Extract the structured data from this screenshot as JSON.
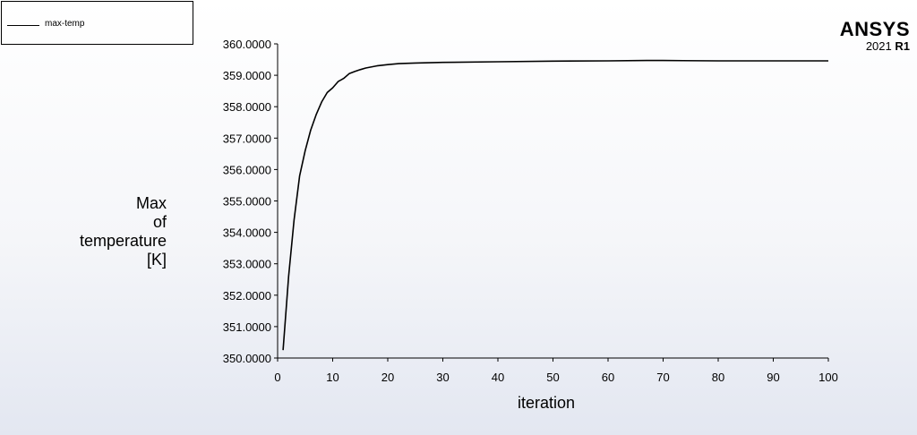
{
  "legend": {
    "label": "max-temp"
  },
  "brand": {
    "name": "ANSYS",
    "version_year": "2021",
    "version_release": "R1"
  },
  "chart_data": {
    "type": "line",
    "title": "",
    "xlabel": "iteration",
    "ylabel_lines": [
      "Max",
      "of",
      "temperature",
      "[K]"
    ],
    "xlim": [
      0,
      100
    ],
    "ylim": [
      350,
      360
    ],
    "x_ticks": [
      0,
      10,
      20,
      30,
      40,
      50,
      60,
      70,
      80,
      90,
      100
    ],
    "y_ticks": [
      350,
      351,
      352,
      353,
      354,
      355,
      356,
      357,
      358,
      359,
      360
    ],
    "y_tick_labels": [
      "350.0000",
      "351.0000",
      "352.0000",
      "353.0000",
      "354.0000",
      "355.0000",
      "356.0000",
      "357.0000",
      "358.0000",
      "359.0000",
      "360.0000"
    ],
    "grid": false,
    "legend_position": "top-left",
    "line_color": "#000000",
    "series": [
      {
        "name": "max-temp",
        "x": [
          1,
          2,
          3,
          4,
          5,
          6,
          7,
          8,
          9,
          10,
          11,
          12,
          13,
          14,
          15,
          16,
          18,
          20,
          22,
          25,
          30,
          40,
          50,
          60,
          67,
          70,
          80,
          90,
          100
        ],
        "y": [
          350.25,
          352.6,
          354.4,
          355.8,
          356.6,
          357.25,
          357.75,
          358.15,
          358.45,
          358.6,
          358.8,
          358.9,
          359.05,
          359.12,
          359.18,
          359.23,
          359.3,
          359.34,
          359.37,
          359.39,
          359.41,
          359.43,
          359.45,
          359.46,
          359.47,
          359.47,
          359.46,
          359.46,
          359.46
        ]
      }
    ]
  }
}
